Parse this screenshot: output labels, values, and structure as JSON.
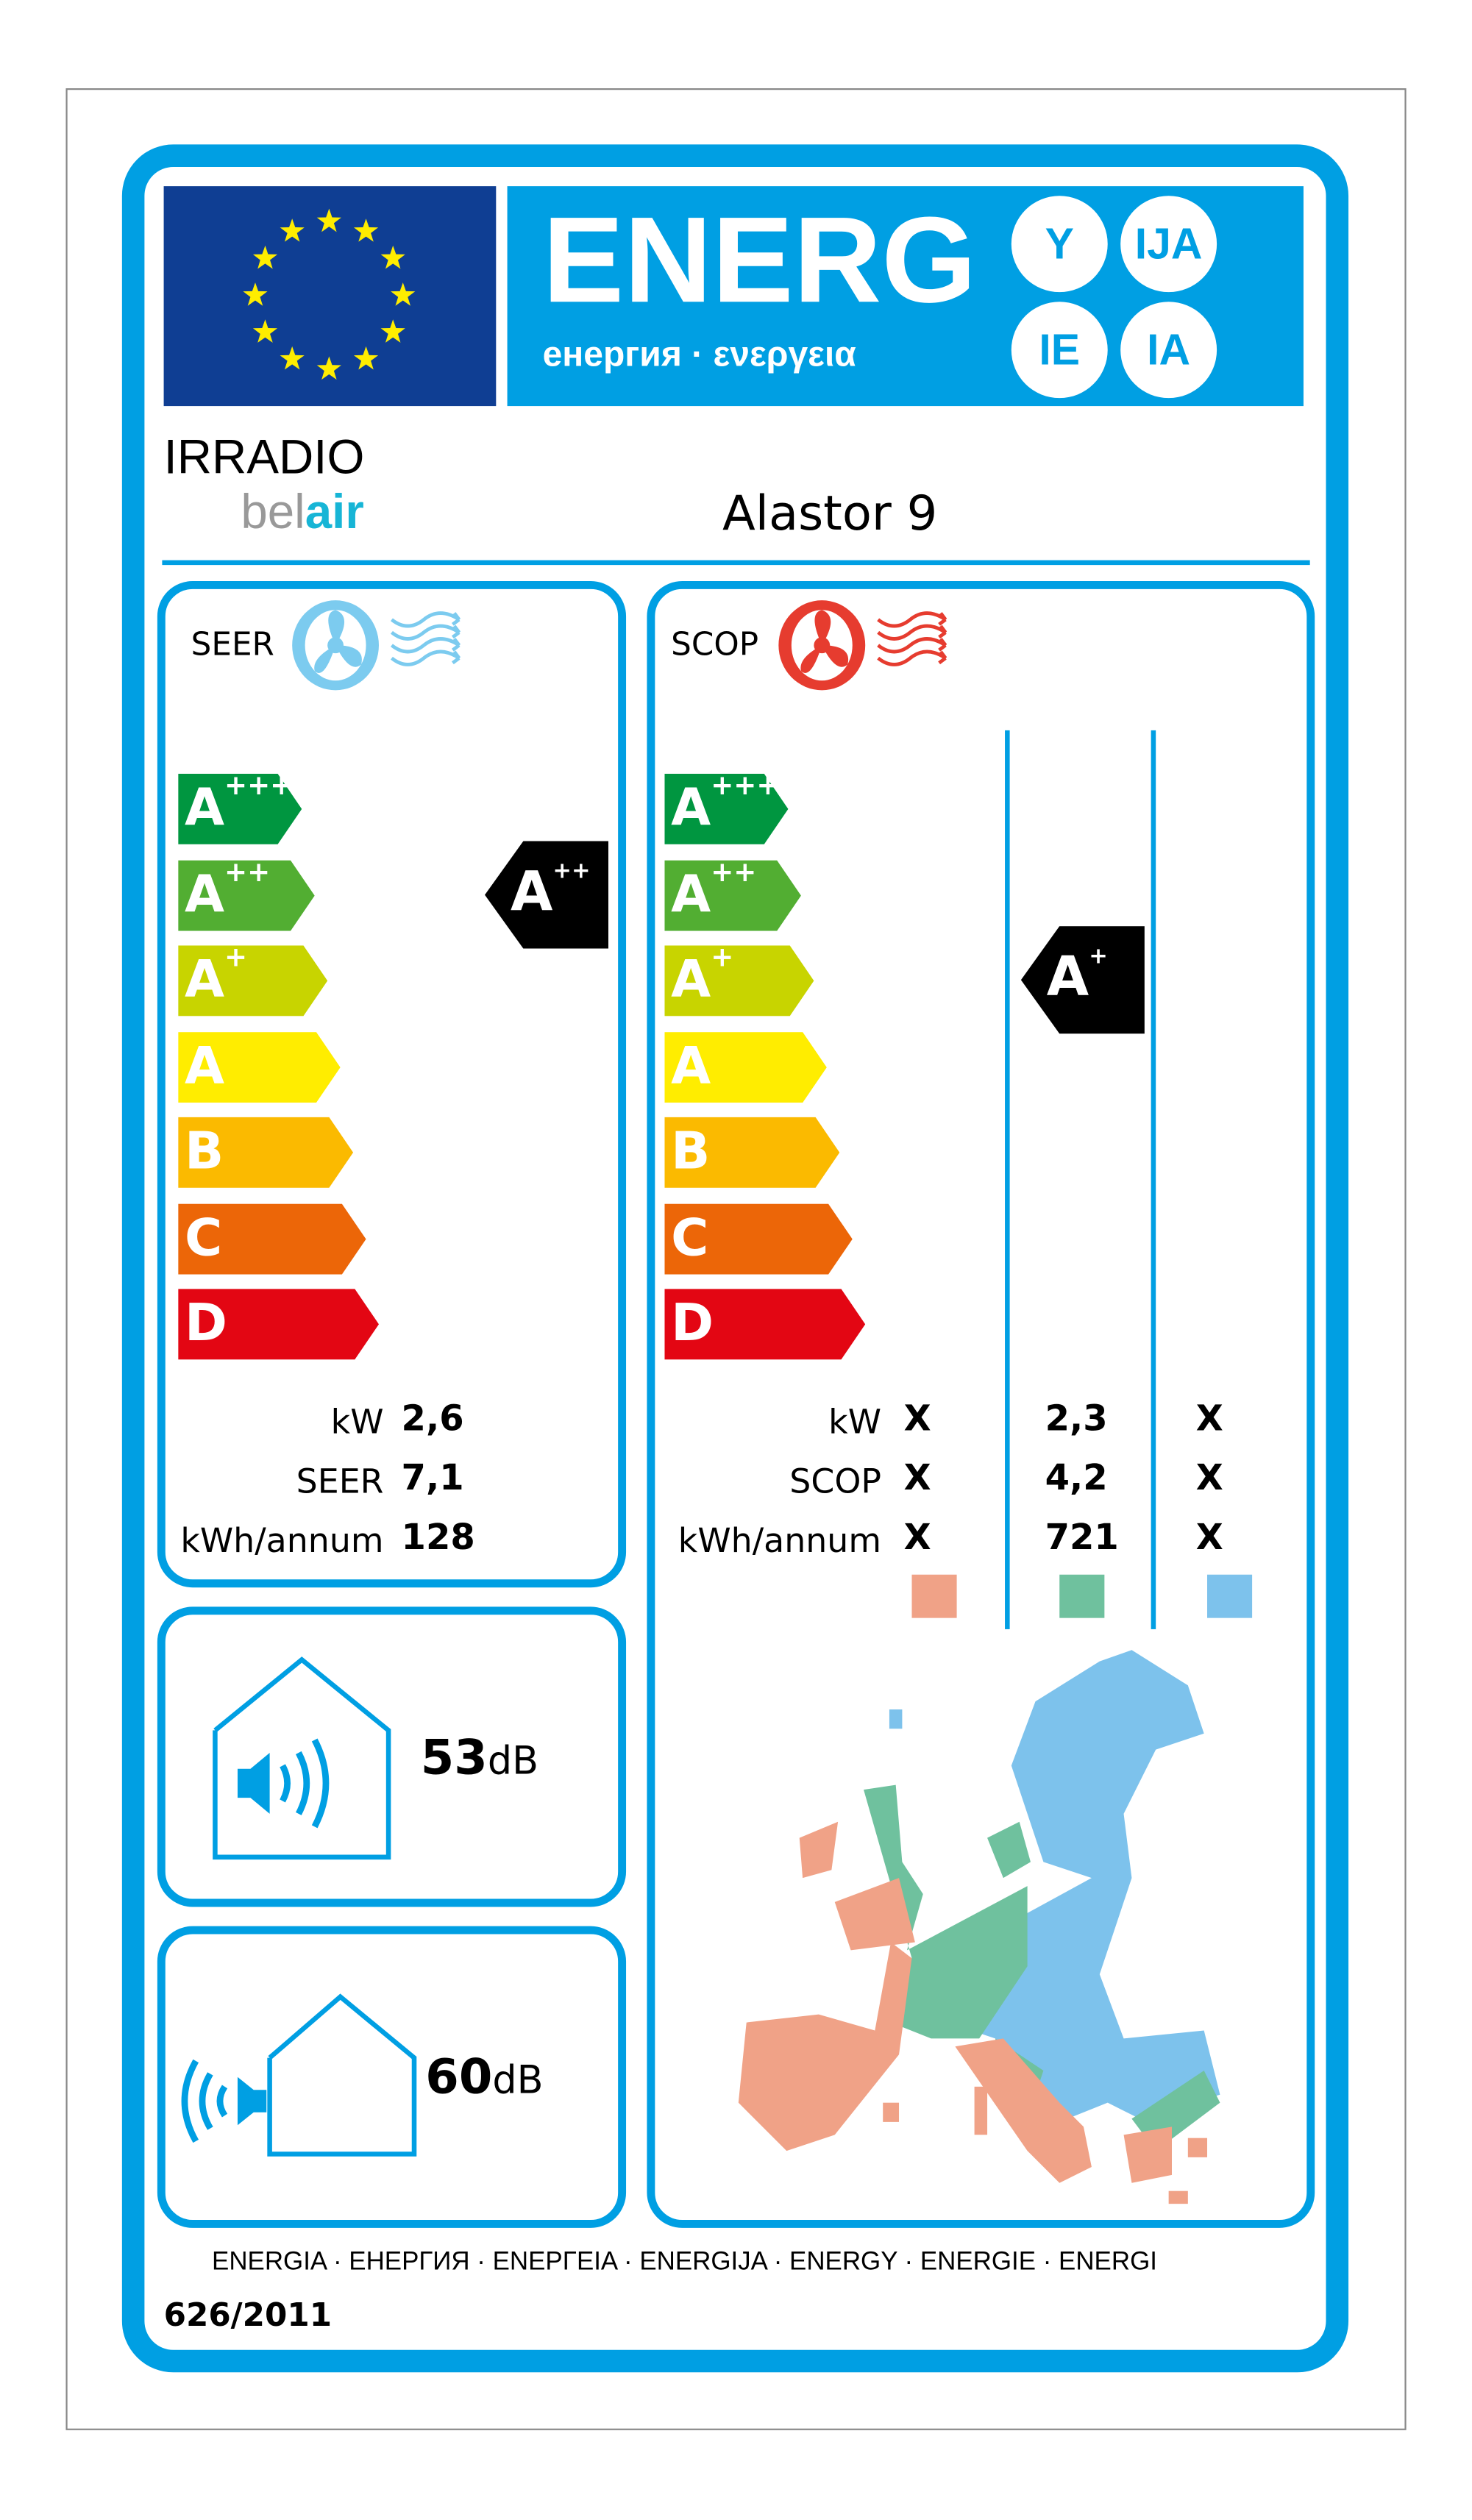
{
  "header": {
    "energy_title": "ENERG",
    "energy_subtitle": "енергия · ενεργεια",
    "suffixes": [
      "Y",
      "IJA",
      "IE",
      "IA"
    ],
    "flag_color": "#0f3e93",
    "brand_color": "#009fe3"
  },
  "supplier": {
    "logo_line1": "IRRADIO",
    "logo_line2_a": "bel",
    "logo_line2_b": "air"
  },
  "model": "Alastor 9",
  "scale": {
    "classes": [
      {
        "letter": "A",
        "plus": "+++",
        "color": "#009640"
      },
      {
        "letter": "A",
        "plus": "++",
        "color": "#52ae32"
      },
      {
        "letter": "A",
        "plus": "+",
        "color": "#c8d400"
      },
      {
        "letter": "A",
        "plus": "",
        "color": "#ffed00"
      },
      {
        "letter": "B",
        "plus": "",
        "color": "#fbba00"
      },
      {
        "letter": "C",
        "plus": "",
        "color": "#ec6608"
      },
      {
        "letter": "D",
        "plus": "",
        "color": "#e30613"
      }
    ]
  },
  "cooling": {
    "label": "SEER",
    "icon": "fan-cold-icon",
    "rating_letter": "A",
    "rating_plus": "++",
    "rating_index": 1,
    "rows": [
      {
        "label": "kW",
        "value": "2,6"
      },
      {
        "label": "SEER",
        "value": "7,1"
      },
      {
        "label": "kWh/annum",
        "value": "128"
      }
    ]
  },
  "heating": {
    "label": "SCOP",
    "icon": "fan-warm-icon",
    "rating_letter": "A",
    "rating_plus": "+",
    "rating_index": 2,
    "rows": [
      {
        "label": "kW",
        "values": [
          "X",
          "2,3",
          "X"
        ]
      },
      {
        "label": "SCOP",
        "values": [
          "X",
          "4,2",
          "X"
        ]
      },
      {
        "label": "kWh/annum",
        "values": [
          "X",
          "721",
          "X"
        ]
      }
    ],
    "zone_colors": [
      "#f0a287",
      "#6fc19e",
      "#7dc2ec"
    ]
  },
  "noise": {
    "indoor_value": "53",
    "indoor_unit": "dB",
    "outdoor_value": "60",
    "outdoor_unit": "dB"
  },
  "footer": {
    "languages": "ENERGIA · ЕНЕРГИЯ · ΕΝΕΡΓΕΙΑ · ENERGIJA · ENERGY · ENERGIE · ENERGI",
    "regulation": "626/2011"
  }
}
